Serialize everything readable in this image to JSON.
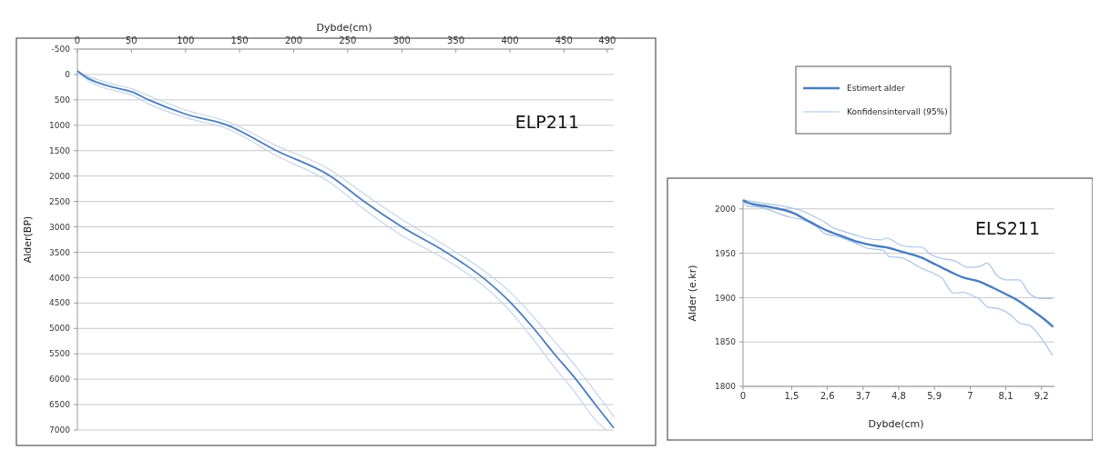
{
  "chart_data": [
    {
      "type": "line",
      "xlabel": "Dybde(cm)",
      "ylabel": "Alder(BP)",
      "annotations": [
        "ELP211"
      ],
      "xlim": [
        0,
        496
      ],
      "xticks": [
        0,
        50,
        100,
        150,
        200,
        250,
        300,
        350,
        400,
        450,
        490
      ],
      "ylim": [
        7000,
        -500
      ],
      "yticks": [
        -500,
        0,
        500,
        1000,
        1500,
        2000,
        2500,
        3000,
        3500,
        4000,
        4500,
        5000,
        5500,
        6000,
        6500,
        7000
      ],
      "grid": "y",
      "legend": false,
      "series": [
        {
          "color": "#c5d5ee",
          "x": [
            0,
            10,
            20,
            35,
            50,
            66,
            100,
            139,
            184,
            234,
            265,
            300,
            341,
            375,
            401,
            422,
            441,
            461,
            479,
            496
          ],
          "values": [
            -70,
            40,
            110,
            200,
            280,
            420,
            700,
            930,
            1400,
            1880,
            2350,
            2850,
            3380,
            3850,
            4300,
            4780,
            5250,
            5750,
            6250,
            6730
          ]
        },
        {
          "color": "#c5d5ee",
          "x": [
            0,
            10,
            20,
            35,
            50,
            66,
            100,
            139,
            184,
            234,
            265,
            300,
            341,
            375,
            401,
            422,
            441,
            461,
            479,
            489
          ],
          "values": [
            -70,
            120,
            230,
            320,
            400,
            580,
            850,
            1070,
            1600,
            2130,
            2650,
            3170,
            3650,
            4150,
            4680,
            5230,
            5760,
            6280,
            6800,
            7000
          ]
        },
        {
          "color": "#4a7ebf",
          "x": [
            0,
            10,
            20,
            35,
            50,
            66,
            100,
            139,
            184,
            234,
            265,
            300,
            341,
            375,
            401,
            422,
            441,
            461,
            479,
            496
          ],
          "values": [
            -70,
            80,
            170,
            260,
            340,
            500,
            780,
            1000,
            1500,
            2000,
            2500,
            3000,
            3500,
            4000,
            4500,
            5000,
            5500,
            6000,
            6500,
            6960
          ]
        }
      ]
    },
    {
      "type": "line",
      "xlabel": "Dybde(cm)",
      "ylabel": "Alder (e.kr)",
      "annotations": [
        "ELS211"
      ],
      "xlim": [
        0,
        9.6
      ],
      "xticks": [
        0,
        {
          "value": 1.5,
          "label": "1,5"
        },
        {
          "value": 2.6,
          "label": "2,6"
        },
        {
          "value": 3.7,
          "label": "3,7"
        },
        {
          "value": 4.8,
          "label": "4,8"
        },
        {
          "value": 5.9,
          "label": "5,9"
        },
        7,
        {
          "value": 8.1,
          "label": "8,1"
        },
        {
          "value": 9.2,
          "label": "9,2"
        }
      ],
      "ylim": [
        1800,
        2010
      ],
      "yticks": [
        1800,
        1850,
        1900,
        1950,
        2000
      ],
      "grid": "y",
      "legend": "top",
      "series": [
        {
          "name": "Konfidensintervall (95%)",
          "color": "#a9c4ea",
          "x": [
            0,
            0.5,
            1.5,
            1.81,
            2.26,
            2.53,
            2.71,
            3.07,
            3.43,
            3.79,
            4.24,
            4.42,
            4.87,
            5.23,
            5.5,
            5.77,
            6.13,
            6.49,
            6.94,
            7.3,
            7.52,
            7.83,
            8.1,
            8.51,
            8.82,
            9.18,
            9.54
          ],
          "values": [
            2010,
            2007,
            2001,
            1998,
            1990,
            1985,
            1980,
            1975,
            1971,
            1967,
            1965,
            1967,
            1959,
            1957,
            1957,
            1949,
            1944,
            1942,
            1934,
            1935,
            1939,
            1925,
            1920,
            1920,
            1905,
            1899,
            1899
          ]
        },
        {
          "color": "#a9c4ea",
          "x": [
            0,
            0.14,
            0.5,
            1.5,
            1.81,
            2.26,
            2.53,
            2.89,
            3.43,
            3.79,
            4.33,
            4.51,
            4.87,
            5.5,
            5.77,
            6.13,
            6.49,
            6.76,
            7.03,
            7.3,
            7.56,
            7.83,
            8.19,
            8.55,
            8.82,
            9.18,
            9.54
          ],
          "values": [
            2010,
            2003,
            2002,
            1990,
            1988,
            1980,
            1972,
            1969,
            1962,
            1956,
            1953,
            1946,
            1945,
            1933,
            1929,
            1922,
            1905,
            1906,
            1903,
            1898,
            1889,
            1888,
            1882,
            1871,
            1869,
            1855,
            1835
          ]
        },
        {
          "name": "Estimert alder",
          "color": "#4a7ebf",
          "x": [
            0,
            0.14,
            0.85,
            1.5,
            2.08,
            2.62,
            3.07,
            3.52,
            4.15,
            4.5,
            4.87,
            5.5,
            5.95,
            6.4,
            6.76,
            7.3,
            7.65,
            8.1,
            8.55,
            8.82,
            9.27,
            9.56
          ],
          "values": [
            2010,
            2007,
            2002,
            1996,
            1985,
            1975,
            1969,
            1963,
            1958,
            1956,
            1952,
            1945,
            1937,
            1929,
            1923,
            1918,
            1912,
            1904,
            1895,
            1888,
            1876,
            1867
          ]
        }
      ]
    }
  ]
}
